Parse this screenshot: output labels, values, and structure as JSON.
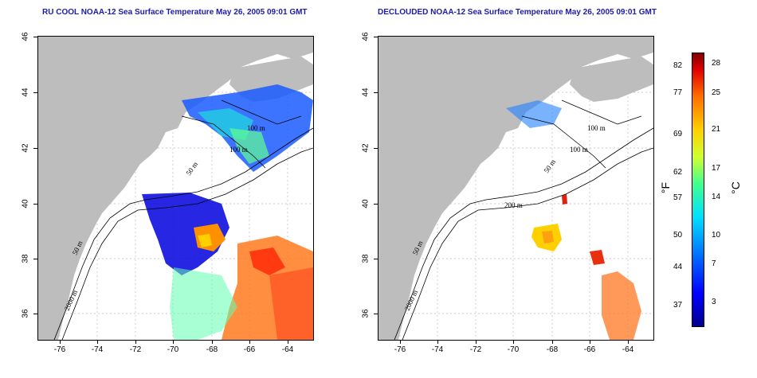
{
  "left_title": "RU COOL NOAA-12 Sea Surface Temperature May 26, 2005 09:01 GMT",
  "right_title": "DECLOUDED NOAA-12 Sea Surface Temperature May 26, 2005 09:01 GMT",
  "x_ticks": [
    "-76",
    "-74",
    "-72",
    "-70",
    "-68",
    "-66",
    "-64"
  ],
  "y_ticks": [
    "46",
    "44",
    "42",
    "40",
    "38",
    "36"
  ],
  "contours_left": [
    "100 m",
    "100 m",
    "50 m",
    "50 m",
    "2000 m"
  ],
  "contours_right": [
    "100 m",
    "100 m",
    "50 m",
    "200 m",
    "50 m",
    "2000 m"
  ],
  "colorbar": {
    "f_unit": "°F",
    "c_unit": "°C",
    "f_labels": [
      "82",
      "77",
      "69",
      "62",
      "57",
      "50",
      "44",
      "37"
    ],
    "c_labels": [
      "28",
      "25",
      "21",
      "17",
      "14",
      "10",
      "7",
      "3"
    ],
    "colors": [
      "#00008c",
      "#0000ff",
      "#0080ff",
      "#00e0ff",
      "#40ff90",
      "#d0ff30",
      "#ffd000",
      "#ff7000",
      "#e00000",
      "#800000"
    ]
  }
}
